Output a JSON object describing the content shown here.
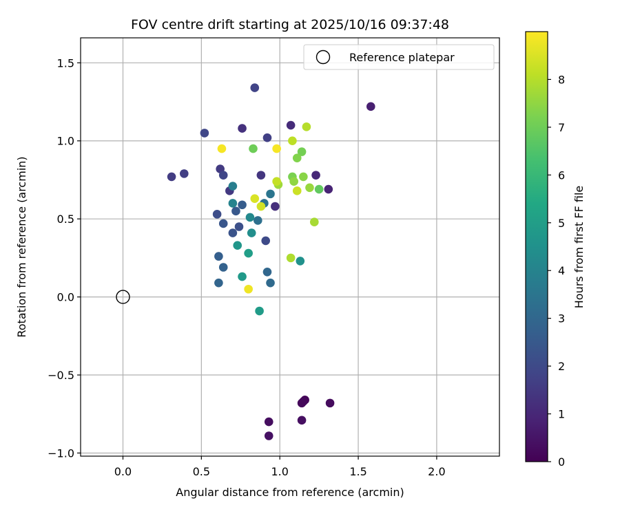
{
  "chart_data": {
    "type": "scatter",
    "title": "FOV centre drift starting at 2025/10/16 09:37:48",
    "xlabel": "Angular distance from reference (arcmin)",
    "ylabel": "Rotation from reference (arcmin)",
    "xlim": [
      -0.27,
      2.4
    ],
    "ylim": [
      -1.02,
      1.66
    ],
    "xticks": [
      0.0,
      0.5,
      1.0,
      1.5,
      2.0
    ],
    "xtick_labels": [
      "0.0",
      "0.5",
      "1.0",
      "1.5",
      "2.0"
    ],
    "yticks": [
      -1.0,
      -0.5,
      0.0,
      0.5,
      1.0,
      1.5
    ],
    "ytick_labels": [
      "−1.0",
      "−0.5",
      "0.0",
      "0.5",
      "1.0",
      "1.5"
    ],
    "grid": true,
    "legend": {
      "position": "top-right",
      "entries": [
        "Reference platepar"
      ]
    },
    "reference_point": {
      "x": 0.0,
      "y": 0.0,
      "marker": "open-circle"
    },
    "colorbar": {
      "label": "Hours from first FF file",
      "colormap": "viridis",
      "range": [
        0,
        9
      ],
      "ticks": [
        0,
        1,
        2,
        3,
        4,
        5,
        6,
        7,
        8
      ],
      "tick_labels": [
        "0",
        "1",
        "2",
        "3",
        "4",
        "5",
        "6",
        "7",
        "8"
      ]
    },
    "points": [
      {
        "x": 1.16,
        "y": -0.66,
        "t": 0.1
      },
      {
        "x": 1.15,
        "y": -0.67,
        "t": 0.15
      },
      {
        "x": 1.14,
        "y": -0.68,
        "t": 0.2
      },
      {
        "x": 1.32,
        "y": -0.68,
        "t": 0.25
      },
      {
        "x": 0.93,
        "y": -0.8,
        "t": 0.3
      },
      {
        "x": 1.14,
        "y": -0.79,
        "t": 0.35
      },
      {
        "x": 0.93,
        "y": -0.89,
        "t": 0.4
      },
      {
        "x": 1.58,
        "y": 1.22,
        "t": 0.8
      },
      {
        "x": 1.31,
        "y": 0.69,
        "t": 0.9
      },
      {
        "x": 1.23,
        "y": 0.78,
        "t": 1.0
      },
      {
        "x": 1.07,
        "y": 1.1,
        "t": 1.1
      },
      {
        "x": 0.97,
        "y": 0.58,
        "t": 1.2
      },
      {
        "x": 0.76,
        "y": 1.08,
        "t": 1.3
      },
      {
        "x": 0.88,
        "y": 0.78,
        "t": 1.4
      },
      {
        "x": 0.68,
        "y": 0.68,
        "t": 1.5
      },
      {
        "x": 0.62,
        "y": 0.82,
        "t": 1.55
      },
      {
        "x": 0.31,
        "y": 0.77,
        "t": 1.6
      },
      {
        "x": 0.39,
        "y": 0.79,
        "t": 1.65
      },
      {
        "x": 0.92,
        "y": 1.02,
        "t": 1.7
      },
      {
        "x": 0.84,
        "y": 1.34,
        "t": 1.8
      },
      {
        "x": 0.64,
        "y": 0.78,
        "t": 1.85
      },
      {
        "x": 0.52,
        "y": 1.05,
        "t": 1.9
      },
      {
        "x": 0.91,
        "y": 0.36,
        "t": 2.0
      },
      {
        "x": 0.6,
        "y": 0.53,
        "t": 2.1
      },
      {
        "x": 0.74,
        "y": 0.45,
        "t": 2.2
      },
      {
        "x": 0.7,
        "y": 0.41,
        "t": 2.3
      },
      {
        "x": 0.64,
        "y": 0.47,
        "t": 2.4
      },
      {
        "x": 0.72,
        "y": 0.55,
        "t": 2.5
      },
      {
        "x": 0.76,
        "y": 0.59,
        "t": 2.6
      },
      {
        "x": 0.61,
        "y": 0.26,
        "t": 2.7
      },
      {
        "x": 0.64,
        "y": 0.19,
        "t": 2.8
      },
      {
        "x": 0.61,
        "y": 0.09,
        "t": 2.9
      },
      {
        "x": 0.92,
        "y": 0.16,
        "t": 3.0
      },
      {
        "x": 0.94,
        "y": 0.09,
        "t": 3.1
      },
      {
        "x": 0.86,
        "y": 0.49,
        "t": 3.3
      },
      {
        "x": 0.9,
        "y": 0.6,
        "t": 3.4
      },
      {
        "x": 0.94,
        "y": 0.66,
        "t": 3.5
      },
      {
        "x": 0.7,
        "y": 0.71,
        "t": 3.8
      },
      {
        "x": 0.7,
        "y": 0.6,
        "t": 4.0
      },
      {
        "x": 0.81,
        "y": 0.51,
        "t": 4.2
      },
      {
        "x": 0.82,
        "y": 0.41,
        "t": 4.4
      },
      {
        "x": 1.13,
        "y": 0.23,
        "t": 4.5
      },
      {
        "x": 0.73,
        "y": 0.33,
        "t": 4.7
      },
      {
        "x": 0.76,
        "y": 0.13,
        "t": 4.8
      },
      {
        "x": 0.87,
        "y": -0.09,
        "t": 4.9
      },
      {
        "x": 0.8,
        "y": 0.28,
        "t": 5.0
      },
      {
        "x": 1.25,
        "y": 0.69,
        "t": 6.8
      },
      {
        "x": 0.83,
        "y": 0.95,
        "t": 7.0
      },
      {
        "x": 1.14,
        "y": 0.93,
        "t": 7.1
      },
      {
        "x": 1.08,
        "y": 0.77,
        "t": 7.2
      },
      {
        "x": 1.11,
        "y": 0.89,
        "t": 7.3
      },
      {
        "x": 1.15,
        "y": 0.77,
        "t": 7.4
      },
      {
        "x": 1.09,
        "y": 0.74,
        "t": 7.5
      },
      {
        "x": 1.19,
        "y": 0.7,
        "t": 7.6
      },
      {
        "x": 0.99,
        "y": 0.72,
        "t": 7.7
      },
      {
        "x": 1.22,
        "y": 0.48,
        "t": 7.8
      },
      {
        "x": 1.07,
        "y": 0.25,
        "t": 7.9
      },
      {
        "x": 1.17,
        "y": 1.09,
        "t": 8.0
      },
      {
        "x": 1.08,
        "y": 1.0,
        "t": 8.1
      },
      {
        "x": 0.98,
        "y": 0.74,
        "t": 8.2
      },
      {
        "x": 1.11,
        "y": 0.68,
        "t": 8.3
      },
      {
        "x": 0.88,
        "y": 0.58,
        "t": 8.4
      },
      {
        "x": 0.84,
        "y": 0.63,
        "t": 8.5
      },
      {
        "x": 0.8,
        "y": 0.05,
        "t": 8.8
      },
      {
        "x": 0.63,
        "y": 0.95,
        "t": 8.9
      },
      {
        "x": 0.98,
        "y": 0.95,
        "t": 8.9
      }
    ]
  }
}
